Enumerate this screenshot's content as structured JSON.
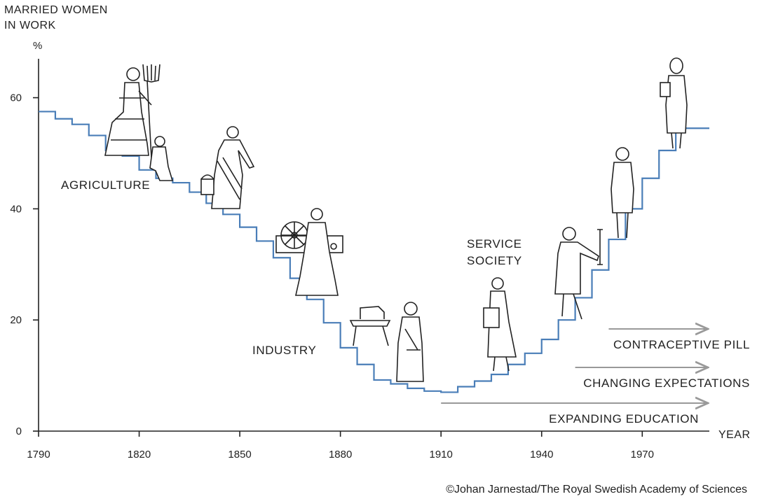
{
  "chart_data": {
    "type": "line",
    "step": true,
    "title": "",
    "y_axis_title_lines": [
      "MARRIED WOMEN",
      "IN WORK"
    ],
    "y_unit": "%",
    "x_axis_title": "YEAR",
    "xlim": [
      1790,
      1990
    ],
    "ylim": [
      0,
      67
    ],
    "x_ticks": [
      1790,
      1820,
      1850,
      1880,
      1910,
      1940,
      1970
    ],
    "y_ticks": [
      0,
      20,
      40,
      60
    ],
    "grid": false,
    "line_color": "#4a7eb8",
    "series": [
      {
        "x": [
          1790,
          1795,
          1800,
          1805,
          1810,
          1815,
          1820,
          1825,
          1830,
          1835,
          1840,
          1845,
          1850,
          1855,
          1860,
          1865,
          1870,
          1875,
          1880,
          1885,
          1890,
          1895,
          1900,
          1905,
          1910,
          1915,
          1920,
          1925,
          1930,
          1935,
          1940,
          1945,
          1950,
          1955,
          1960,
          1965,
          1970,
          1975,
          1980,
          1985,
          1990
        ],
        "y": [
          57.5,
          56.2,
          55.2,
          53.2,
          50.5,
          49.5,
          47,
          45.5,
          44.7,
          43,
          41,
          39,
          36.7,
          34.2,
          31.2,
          27.5,
          23.7,
          19.5,
          15,
          12,
          9.2,
          8.5,
          7.7,
          7.2,
          7,
          8,
          9,
          10.2,
          12,
          14,
          16.5,
          20,
          24,
          29,
          34.5,
          40,
          45.5,
          50.5,
          54.5,
          54.5,
          54.5
        ]
      }
    ],
    "era_labels": [
      "AGRICULTURE",
      "INDUSTRY",
      "SERVICE",
      "SOCIETY"
    ],
    "arrows": [
      {
        "label": "CONTRACEPTIVE PILL",
        "from": 1960,
        "to": 1990
      },
      {
        "label": "CHANGING EXPECTATIONS",
        "from": 1950,
        "to": 1990
      },
      {
        "label": "EXPANDING EDUCATION",
        "from": 1910,
        "to": 1990
      }
    ],
    "credit": "©Johan Jarnestad/The Royal Swedish Academy of Sciences"
  }
}
